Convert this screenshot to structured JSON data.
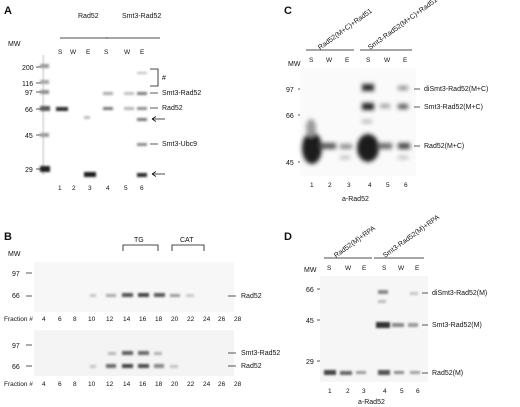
{
  "panels": {
    "A": {
      "letter": "A",
      "mw_title": "MW",
      "markers": [
        "200",
        "116",
        "97",
        "66",
        "45",
        "29"
      ],
      "groups": [
        "Rad52",
        "Smt3-Rad52"
      ],
      "lane_letters": [
        "S",
        "W",
        "E",
        "S",
        "W",
        "E"
      ],
      "lane_numbers": [
        "1",
        "2",
        "3",
        "4",
        "5",
        "6"
      ],
      "hash": "#",
      "band_labels": [
        "Smt3-Rad52",
        "Rad52",
        "Smt3-Ubc9"
      ]
    },
    "B": {
      "letter": "B",
      "mw_title": "MW",
      "markers_top": [
        "97",
        "66"
      ],
      "markers_bottom": [
        "97",
        "66"
      ],
      "brackets": [
        "TG",
        "CAT"
      ],
      "fraction_label": "Fraction #",
      "fractions": [
        "4",
        "6",
        "8",
        "10",
        "12",
        "14",
        "16",
        "18",
        "20",
        "22",
        "24",
        "26",
        "28"
      ],
      "top_label": "Rad52",
      "bottom_labels": [
        "Smt3-Rad52",
        "Rad52"
      ]
    },
    "C": {
      "letter": "C",
      "mw_title": "MW",
      "markers": [
        "97",
        "66",
        "45"
      ],
      "groups": [
        "Rad52(M+C)+Rad51",
        "Smt3-Rad52(M+C)+Rad51"
      ],
      "lane_letters": [
        "S",
        "W",
        "E",
        "S",
        "W",
        "E"
      ],
      "lane_numbers": [
        "1",
        "2",
        "3",
        "4",
        "5",
        "6"
      ],
      "band_labels": [
        "diSmt3-Rad52(M+C)",
        "Smt3-Rad52(M+C)",
        "Rad52(M+C)"
      ],
      "caption": "a-Rad52"
    },
    "D": {
      "letter": "D",
      "mw_title": "MW",
      "markers": [
        "66",
        "45",
        "29"
      ],
      "groups": [
        "Rad52(M)+RPA",
        "Smt3-Rad52(M)+RPA"
      ],
      "lane_letters": [
        "S",
        "W",
        "E",
        "S",
        "W",
        "E"
      ],
      "lane_numbers": [
        "1",
        "2",
        "3",
        "4",
        "5",
        "6"
      ],
      "band_labels": [
        "diSmt3-Rad52(M)",
        "Smt3-Rad52(M)",
        "Rad52(M)"
      ],
      "caption": "a-Rad52"
    }
  }
}
